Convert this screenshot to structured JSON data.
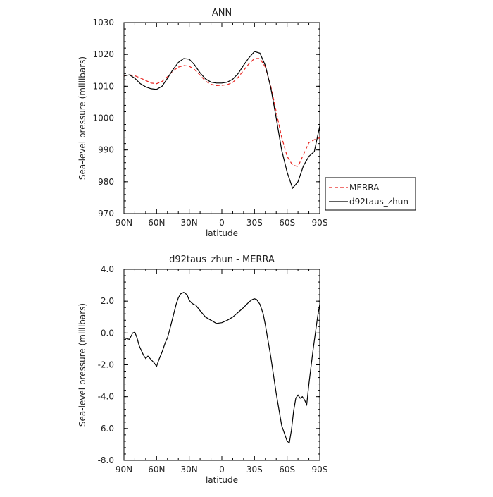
{
  "chart_data": [
    {
      "type": "line",
      "title": "ANN",
      "xlabel": "latitude",
      "ylabel": "Sea-level pressure (millibars)",
      "x_tick_labels": [
        "90N",
        "60N",
        "30N",
        "0",
        "30S",
        "60S",
        "90S"
      ],
      "x_tick_values": [
        90,
        60,
        30,
        0,
        -30,
        -60,
        -90
      ],
      "xlim": [
        90,
        -90
      ],
      "ylim": [
        970,
        1030
      ],
      "y_tick_labels": [
        "970",
        "980",
        "990",
        "1000",
        "1010",
        "1020",
        "1030"
      ],
      "y_tick_values": [
        970,
        980,
        990,
        1000,
        1010,
        1020,
        1030
      ],
      "legend": {
        "placement": "right",
        "entries": [
          "MERRA",
          "d92taus_zhun"
        ]
      },
      "series": [
        {
          "name": "MERRA",
          "color": "#e8221e",
          "dash": true,
          "x": [
            90,
            85,
            80,
            75,
            70,
            65,
            60,
            55,
            50,
            45,
            40,
            35,
            30,
            25,
            20,
            15,
            10,
            5,
            0,
            -5,
            -10,
            -15,
            -20,
            -25,
            -30,
            -35,
            -40,
            -45,
            -50,
            -55,
            -60,
            -65,
            -70,
            -75,
            -80,
            -85,
            -90
          ],
          "values": [
            1013.3,
            1013.6,
            1013.3,
            1012.6,
            1011.8,
            1011.0,
            1010.8,
            1011.5,
            1013.0,
            1014.8,
            1016.0,
            1016.5,
            1016.3,
            1015.2,
            1013.5,
            1011.6,
            1010.6,
            1010.2,
            1010.3,
            1010.5,
            1011.2,
            1012.8,
            1015.0,
            1017.1,
            1018.7,
            1018.7,
            1016.0,
            1010.0,
            1002.0,
            994.0,
            988.0,
            985.2,
            984.8,
            988.5,
            992.3,
            993.2,
            993.8
          ]
        },
        {
          "name": "d92taus_zhun",
          "color": "#000000",
          "dash": false,
          "x": [
            90,
            85,
            80,
            75,
            70,
            65,
            60,
            55,
            50,
            45,
            40,
            35,
            30,
            25,
            20,
            15,
            10,
            5,
            0,
            -5,
            -10,
            -15,
            -20,
            -25,
            -30,
            -35,
            -40,
            -45,
            -50,
            -55,
            -60,
            -65,
            -70,
            -75,
            -80,
            -85,
            -90
          ],
          "values": [
            1013.2,
            1013.6,
            1012.5,
            1010.8,
            1009.8,
            1009.2,
            1009.0,
            1010.0,
            1012.5,
            1015.2,
            1017.5,
            1018.7,
            1018.5,
            1016.7,
            1014.2,
            1012.3,
            1011.3,
            1011.0,
            1011.0,
            1011.3,
            1012.2,
            1014.0,
            1016.6,
            1019.0,
            1020.9,
            1020.4,
            1016.5,
            1009.5,
            1000.0,
            990.0,
            983.0,
            978.0,
            980.0,
            985.0,
            988.0,
            989.5,
            997.5
          ]
        }
      ]
    },
    {
      "type": "line",
      "title": "d92taus_zhun - MERRA",
      "xlabel": "latitude",
      "ylabel": "Sea-level pressure (millibars)",
      "x_tick_labels": [
        "90N",
        "60N",
        "30N",
        "0",
        "30S",
        "60S",
        "90S"
      ],
      "x_tick_values": [
        90,
        60,
        30,
        0,
        -30,
        -60,
        -90
      ],
      "xlim": [
        90,
        -90
      ],
      "ylim": [
        -8.0,
        4.0
      ],
      "y_tick_labels": [
        "-8.0",
        "-6.0",
        "-4.0",
        "-2.0",
        "0.0",
        "2.0",
        "4.0"
      ],
      "y_tick_values": [
        -8,
        -6,
        -4,
        -2,
        0,
        2,
        4
      ],
      "series": [
        {
          "color": "#000000",
          "dash": false,
          "x": [
            90,
            85,
            82,
            80,
            78,
            76,
            74,
            72,
            70,
            68,
            66,
            64,
            62,
            60,
            58,
            55,
            52,
            50,
            48,
            45,
            42,
            40,
            38,
            35,
            32,
            30,
            28,
            26,
            24,
            20,
            15,
            10,
            5,
            0,
            -5,
            -10,
            -15,
            -20,
            -25,
            -28,
            -30,
            -32,
            -35,
            -38,
            -40,
            -45,
            -50,
            -55,
            -60,
            -62,
            -64,
            -66,
            -68,
            -70,
            -72,
            -74,
            -76,
            -78,
            -80,
            -84,
            -88,
            -90
          ],
          "values": [
            -0.3,
            -0.4,
            0.0,
            0.05,
            -0.3,
            -0.8,
            -1.1,
            -1.4,
            -1.6,
            -1.45,
            -1.6,
            -1.75,
            -1.9,
            -2.1,
            -1.7,
            -1.2,
            -0.6,
            -0.3,
            0.2,
            1.0,
            1.8,
            2.2,
            2.45,
            2.55,
            2.4,
            2.05,
            1.9,
            1.8,
            1.75,
            1.4,
            1.0,
            0.8,
            0.6,
            0.65,
            0.8,
            1.0,
            1.3,
            1.6,
            1.95,
            2.1,
            2.15,
            2.1,
            1.8,
            1.2,
            0.5,
            -1.5,
            -3.8,
            -5.8,
            -6.8,
            -6.9,
            -6.1,
            -4.9,
            -4.1,
            -3.9,
            -4.1,
            -4.0,
            -4.2,
            -4.5,
            -3.2,
            -1.0,
            1.0,
            1.8
          ]
        }
      ]
    }
  ]
}
